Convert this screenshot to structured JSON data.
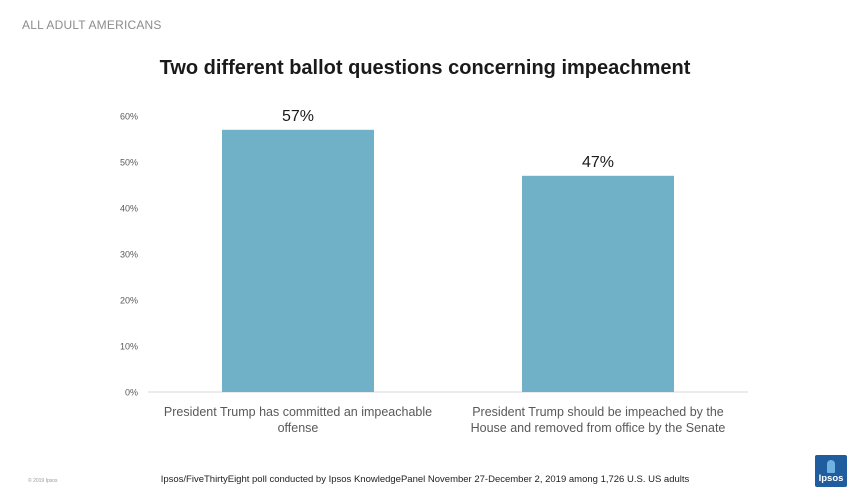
{
  "header": {
    "label": "ALL ADULT AMERICANS"
  },
  "chart_data": {
    "type": "bar",
    "title": "Two different ballot questions concerning impeachment",
    "categories": [
      [
        "President Trump has committed an impeachable",
        "offense"
      ],
      [
        "President Trump should be impeached by the",
        "House and removed from office by the Senate"
      ]
    ],
    "values": [
      57,
      47
    ],
    "data_labels": [
      "57%",
      "47%"
    ],
    "ylim": [
      0,
      60
    ],
    "yticks": [
      0,
      10,
      20,
      30,
      40,
      50,
      60
    ],
    "ytick_labels": [
      "0%",
      "10%",
      "20%",
      "30%",
      "40%",
      "50%",
      "60%"
    ],
    "xlabel": "",
    "ylabel": "",
    "bar_color": "#71b1c8",
    "grid": false
  },
  "footer": {
    "source": "Ipsos/FiveThirtyEight poll conducted by Ipsos KnowledgePanel November 27-December 2, 2019   among 1,726 U.S. US adults",
    "copyright": "© 2019 Ipsos",
    "logo_text": "Ipsos",
    "logo_color": "#1f5d9e"
  }
}
